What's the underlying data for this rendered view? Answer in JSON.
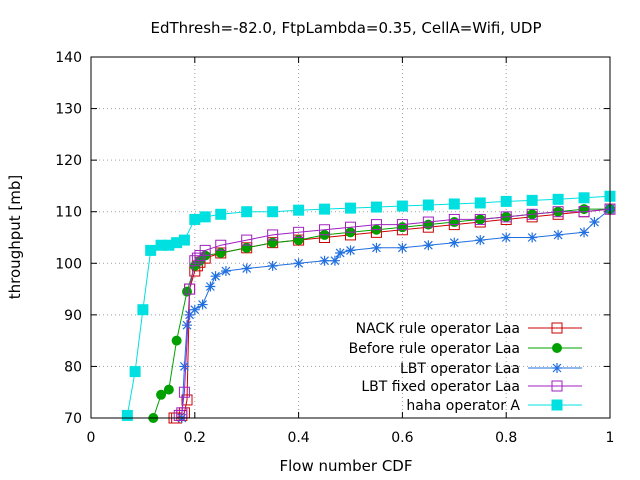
{
  "chart_data": {
    "type": "line",
    "title": "EdThresh=-82.0, FtpLambda=0.35, CellA=Wifi, UDP",
    "xlabel": "Flow number CDF",
    "ylabel": "throughput [mb]",
    "xlim": [
      0,
      1
    ],
    "ylim": [
      70,
      140
    ],
    "xticks": [
      "0",
      "0.2",
      "0.4",
      "0.6",
      "0.8",
      "1"
    ],
    "yticks": [
      "70",
      "80",
      "90",
      "100",
      "110",
      "120",
      "130",
      "140"
    ],
    "grid": true,
    "legend_position": "bottom-right",
    "series": [
      {
        "name": "NACK rule operator Laa",
        "color": "#cc0000",
        "marker": "open-square",
        "x": [
          0.16,
          0.165,
          0.175,
          0.18,
          0.185,
          0.19,
          0.2,
          0.205,
          0.21,
          0.22,
          0.25,
          0.3,
          0.35,
          0.4,
          0.45,
          0.5,
          0.55,
          0.6,
          0.65,
          0.7,
          0.75,
          0.8,
          0.85,
          0.9,
          0.95,
          1.0
        ],
        "y": [
          70.0,
          70.0,
          70.5,
          71.0,
          73.5,
          95.0,
          98.5,
          99.5,
          100.2,
          101.0,
          102.0,
          103.0,
          104.0,
          104.5,
          105.0,
          105.5,
          106.0,
          106.5,
          107.0,
          107.5,
          108.0,
          108.5,
          109.0,
          109.5,
          110.0,
          110.5
        ]
      },
      {
        "name": "Before rule operator Laa",
        "color": "#00a000",
        "marker": "filled-circle",
        "x": [
          0.12,
          0.135,
          0.15,
          0.165,
          0.185,
          0.2,
          0.21,
          0.22,
          0.25,
          0.3,
          0.35,
          0.4,
          0.45,
          0.5,
          0.55,
          0.6,
          0.65,
          0.7,
          0.75,
          0.8,
          0.85,
          0.9,
          0.95,
          1.0
        ],
        "y": [
          70.0,
          74.5,
          75.5,
          85.0,
          94.5,
          99.5,
          100.5,
          101.5,
          102.0,
          103.0,
          104.0,
          104.5,
          105.5,
          106.0,
          106.5,
          107.0,
          107.5,
          108.0,
          108.5,
          109.0,
          109.5,
          110.0,
          110.5,
          110.5
        ]
      },
      {
        "name": "LBT operator Laa",
        "color": "#2070e0",
        "marker": "star",
        "x": [
          0.175,
          0.18,
          0.185,
          0.19,
          0.2,
          0.215,
          0.23,
          0.24,
          0.26,
          0.3,
          0.35,
          0.4,
          0.45,
          0.47,
          0.48,
          0.5,
          0.55,
          0.6,
          0.65,
          0.7,
          0.75,
          0.8,
          0.85,
          0.9,
          0.95,
          0.97,
          1.0
        ],
        "y": [
          70.0,
          80.0,
          88.0,
          90.0,
          91.0,
          92.0,
          95.5,
          97.5,
          98.5,
          99.0,
          99.5,
          100.0,
          100.5,
          100.5,
          102.0,
          102.5,
          103.0,
          103.0,
          103.5,
          104.0,
          104.5,
          105.0,
          105.0,
          105.5,
          106.0,
          108.0,
          110.5
        ]
      },
      {
        "name": "LBT fixed operator Laa",
        "color": "#a020c0",
        "marker": "open-square",
        "x": [
          0.17,
          0.175,
          0.18,
          0.19,
          0.2,
          0.205,
          0.21,
          0.22,
          0.25,
          0.3,
          0.35,
          0.4,
          0.45,
          0.5,
          0.55,
          0.6,
          0.65,
          0.7,
          0.75,
          0.8,
          0.85,
          0.9,
          0.95,
          1.0
        ],
        "y": [
          70.5,
          71.0,
          75.0,
          95.0,
          100.5,
          101.0,
          101.5,
          102.5,
          103.5,
          104.5,
          105.5,
          106.0,
          106.5,
          107.0,
          107.5,
          107.5,
          108.0,
          108.5,
          108.5,
          109.0,
          109.5,
          110.0,
          110.0,
          110.5
        ]
      },
      {
        "name": "haha operator A",
        "color": "#00e0e0",
        "marker": "filled-square",
        "x": [
          0.07,
          0.085,
          0.1,
          0.115,
          0.135,
          0.15,
          0.165,
          0.18,
          0.2,
          0.22,
          0.25,
          0.3,
          0.35,
          0.4,
          0.45,
          0.5,
          0.55,
          0.6,
          0.65,
          0.7,
          0.75,
          0.8,
          0.85,
          0.9,
          0.95,
          1.0
        ],
        "y": [
          70.5,
          79.0,
          91.0,
          102.5,
          103.5,
          103.5,
          104.0,
          104.5,
          108.5,
          109.0,
          109.5,
          110.0,
          110.0,
          110.3,
          110.5,
          110.7,
          110.9,
          111.1,
          111.3,
          111.5,
          111.7,
          112.0,
          112.2,
          112.4,
          112.7,
          113.0
        ]
      }
    ]
  }
}
